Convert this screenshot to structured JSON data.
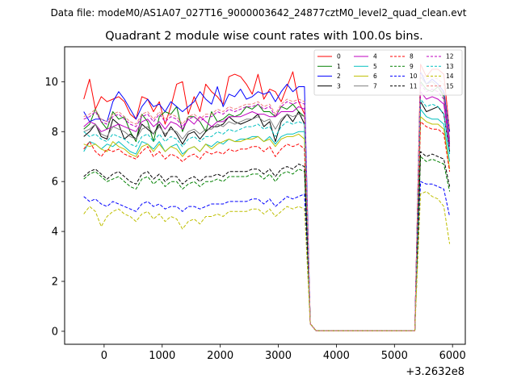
{
  "chart_data": {
    "type": "line",
    "suptitle": "Data file: modeM0/AS1A07_027T16_9000003642_24877cztM0_level2_quad_clean.evt",
    "title": "Quadrant 2 module wise count rates with 100.0s bins.",
    "xlabel": "",
    "ylabel": "",
    "x_offset_label": "+3.2632e8",
    "xlim": [
      -680,
      6220
    ],
    "ylim": [
      -0.52,
      11.4
    ],
    "xticks": [
      0,
      1000,
      2000,
      3000,
      4000,
      5000,
      6000
    ],
    "xtick_labels": [
      "0",
      "1000",
      "2000",
      "3000",
      "4000",
      "5000",
      "6000"
    ],
    "yticks": [
      0,
      2,
      4,
      6,
      8,
      10
    ],
    "ytick_labels": [
      "0",
      "2",
      "4",
      "6",
      "8",
      "10"
    ],
    "grid": false,
    "legend_position": "top-right",
    "x": [
      -350,
      -250,
      -150,
      -50,
      50,
      150,
      250,
      350,
      450,
      550,
      650,
      750,
      850,
      950,
      1050,
      1150,
      1250,
      1350,
      1450,
      1550,
      1650,
      1750,
      1850,
      1950,
      2050,
      2150,
      2250,
      2350,
      2450,
      2550,
      2650,
      2750,
      2850,
      2950,
      3050,
      3150,
      3250,
      3350,
      3450,
      3550,
      3650,
      3750,
      3850,
      3950,
      4050,
      4150,
      4250,
      4350,
      4450,
      4550,
      4650,
      4750,
      4850,
      4950,
      5050,
      5150,
      5250,
      5350,
      5450,
      5550,
      5650,
      5750,
      5850,
      5950
    ],
    "series": [
      {
        "name": "0",
        "color": "#ff0000",
        "dash": "solid",
        "values": [
          9.3,
          10.1,
          8.9,
          9.4,
          9.2,
          9.3,
          9.4,
          9.2,
          8.7,
          8.5,
          9.4,
          9.3,
          8.8,
          9.2,
          8.3,
          9.0,
          9.9,
          10.0,
          8.7,
          9.4,
          8.8,
          9.9,
          9.6,
          9.4,
          9.1,
          10.2,
          10.3,
          10.2,
          9.9,
          9.5,
          10.3,
          9.3,
          9.7,
          9.6,
          9.2,
          9.8,
          10.4,
          9.2,
          8.7,
          0.3,
          0.02,
          0.02,
          0.02,
          0.02,
          0.02,
          0.02,
          0.02,
          0.02,
          0.02,
          0.02,
          0.02,
          0.02,
          0.02,
          0.02,
          0.02,
          0.02,
          0.02,
          0.02,
          10.7,
          10.2,
          10.5,
          10.5,
          10.3,
          8.0
        ]
      },
      {
        "name": "1",
        "color": "#008000",
        "dash": "solid",
        "values": [
          8.1,
          8.3,
          8.9,
          8.4,
          8.1,
          8.8,
          8.5,
          8.6,
          8.0,
          7.6,
          8.7,
          8.4,
          7.6,
          8.6,
          8.8,
          8.7,
          9.0,
          8.0,
          8.6,
          8.6,
          8.4,
          8.0,
          8.8,
          8.4,
          8.5,
          8.7,
          8.6,
          8.7,
          9.0,
          8.9,
          9.1,
          8.8,
          8.8,
          8.6,
          9.0,
          8.9,
          9.1,
          8.8,
          8.6,
          0.3,
          0.02,
          0.02,
          0.02,
          0.02,
          0.02,
          0.02,
          0.02,
          0.02,
          0.02,
          0.02,
          0.02,
          0.02,
          0.02,
          0.02,
          0.02,
          0.02,
          0.02,
          0.02,
          10.0,
          9.7,
          9.6,
          9.8,
          9.4,
          7.5
        ]
      },
      {
        "name": "2",
        "color": "#0000ff",
        "dash": "solid",
        "values": [
          8.8,
          8.4,
          8.5,
          8.5,
          8.4,
          9.2,
          9.6,
          9.3,
          8.9,
          8.5,
          9.0,
          9.3,
          9.0,
          9.1,
          8.8,
          9.2,
          9.0,
          8.8,
          9.0,
          9.2,
          9.6,
          9.3,
          9.1,
          9.8,
          9.0,
          9.5,
          9.4,
          9.7,
          9.3,
          9.4,
          9.6,
          9.5,
          9.6,
          9.2,
          9.6,
          9.9,
          9.6,
          9.8,
          9.8,
          0.3,
          0.02,
          0.02,
          0.02,
          0.02,
          0.02,
          0.02,
          0.02,
          0.02,
          0.02,
          0.02,
          0.02,
          0.02,
          0.02,
          0.02,
          0.02,
          0.02,
          0.02,
          0.02,
          10.4,
          9.9,
          10.1,
          9.9,
          9.6,
          8.0
        ]
      },
      {
        "name": "3",
        "color": "#000000",
        "dash": "solid",
        "values": [
          7.8,
          8.0,
          8.3,
          7.8,
          7.7,
          8.5,
          8.3,
          7.7,
          7.9,
          7.7,
          8.3,
          8.1,
          7.9,
          8.3,
          7.8,
          8.2,
          7.9,
          7.5,
          7.9,
          8.0,
          7.7,
          8.0,
          8.2,
          8.2,
          8.3,
          8.6,
          8.4,
          8.3,
          8.4,
          8.5,
          8.7,
          8.2,
          8.4,
          7.6,
          8.4,
          8.7,
          8.4,
          8.8,
          8.3,
          0.3,
          0.02,
          0.02,
          0.02,
          0.02,
          0.02,
          0.02,
          0.02,
          0.02,
          0.02,
          0.02,
          0.02,
          0.02,
          0.02,
          0.02,
          0.02,
          0.02,
          0.02,
          0.02,
          9.2,
          8.8,
          8.9,
          9.0,
          8.7,
          7.2
        ]
      },
      {
        "name": "4",
        "color": "#bf00bf",
        "dash": "solid",
        "values": [
          8.2,
          8.4,
          8.3,
          8.0,
          8.1,
          8.2,
          8.3,
          8.2,
          8.1,
          8.0,
          8.4,
          8.5,
          8.2,
          8.4,
          8.1,
          8.4,
          8.3,
          8.1,
          8.5,
          8.3,
          8.6,
          8.4,
          8.2,
          8.4,
          8.4,
          8.6,
          8.6,
          8.6,
          8.7,
          8.8,
          8.7,
          8.7,
          8.6,
          8.6,
          8.8,
          8.8,
          8.8,
          9.0,
          8.9,
          0.3,
          0.02,
          0.02,
          0.02,
          0.02,
          0.02,
          0.02,
          0.02,
          0.02,
          0.02,
          0.02,
          0.02,
          0.02,
          0.02,
          0.02,
          0.02,
          0.02,
          0.02,
          0.02,
          9.6,
          9.3,
          9.4,
          9.3,
          9.1,
          7.4
        ]
      },
      {
        "name": "5",
        "color": "#00bfbf",
        "dash": "solid",
        "values": [
          7.2,
          7.6,
          7.5,
          7.3,
          7.5,
          7.4,
          7.6,
          7.4,
          7.2,
          7.1,
          7.6,
          7.5,
          7.3,
          7.6,
          7.2,
          7.4,
          7.5,
          7.1,
          7.3,
          7.4,
          7.2,
          7.5,
          7.4,
          7.6,
          7.5,
          7.7,
          7.6,
          7.7,
          7.7,
          7.8,
          7.8,
          7.6,
          7.8,
          7.5,
          7.8,
          7.9,
          7.9,
          8.0,
          8.0,
          0.3,
          0.02,
          0.02,
          0.02,
          0.02,
          0.02,
          0.02,
          0.02,
          0.02,
          0.02,
          0.02,
          0.02,
          0.02,
          0.02,
          0.02,
          0.02,
          0.02,
          0.02,
          0.02,
          8.9,
          8.6,
          8.5,
          8.5,
          8.3,
          6.8
        ]
      },
      {
        "name": "6",
        "color": "#bfbf00",
        "dash": "solid",
        "values": [
          7.5,
          7.4,
          7.5,
          7.3,
          7.2,
          7.6,
          7.4,
          7.3,
          7.1,
          7.0,
          7.4,
          7.5,
          7.2,
          7.5,
          7.2,
          7.4,
          7.3,
          7.0,
          7.3,
          7.4,
          7.2,
          7.5,
          7.3,
          7.5,
          7.6,
          7.7,
          7.6,
          7.6,
          7.7,
          7.7,
          7.8,
          7.6,
          7.7,
          7.4,
          7.7,
          7.8,
          7.8,
          7.9,
          7.7,
          0.3,
          0.02,
          0.02,
          0.02,
          0.02,
          0.02,
          0.02,
          0.02,
          0.02,
          0.02,
          0.02,
          0.02,
          0.02,
          0.02,
          0.02,
          0.02,
          0.02,
          0.02,
          0.02,
          8.6,
          8.4,
          8.3,
          8.3,
          8.1,
          6.5
        ]
      },
      {
        "name": "7",
        "color": "#808080",
        "dash": "solid",
        "values": [
          8.0,
          8.1,
          8.3,
          7.9,
          7.8,
          8.2,
          8.1,
          8.0,
          7.8,
          7.7,
          8.1,
          8.2,
          7.9,
          8.2,
          7.9,
          8.1,
          8.0,
          7.7,
          8.0,
          8.1,
          7.9,
          8.1,
          8.1,
          8.3,
          8.2,
          8.4,
          8.3,
          8.4,
          8.5,
          8.5,
          8.6,
          8.4,
          8.5,
          8.1,
          8.5,
          8.7,
          8.6,
          8.7,
          8.6,
          0.3,
          0.02,
          0.02,
          0.02,
          0.02,
          0.02,
          0.02,
          0.02,
          0.02,
          0.02,
          0.02,
          0.02,
          0.02,
          0.02,
          0.02,
          0.02,
          0.02,
          0.02,
          0.02,
          10.2,
          9.9,
          10.0,
          9.8,
          9.5,
          7.7
        ]
      },
      {
        "name": "8",
        "color": "#ff0000",
        "dash": "dashed",
        "values": [
          7.3,
          7.6,
          7.2,
          7.0,
          7.3,
          7.2,
          7.3,
          7.1,
          7.0,
          6.9,
          7.2,
          7.4,
          7.0,
          7.2,
          6.9,
          7.1,
          7.0,
          6.8,
          7.0,
          7.1,
          6.9,
          7.2,
          7.1,
          7.2,
          7.1,
          7.3,
          7.2,
          7.3,
          7.3,
          7.4,
          7.4,
          7.2,
          7.4,
          7.0,
          7.3,
          7.5,
          7.4,
          7.5,
          7.3,
          0.3,
          0.02,
          0.02,
          0.02,
          0.02,
          0.02,
          0.02,
          0.02,
          0.02,
          0.02,
          0.02,
          0.02,
          0.02,
          0.02,
          0.02,
          0.02,
          0.02,
          0.02,
          0.02,
          8.4,
          8.2,
          8.1,
          8.1,
          7.9,
          6.4
        ]
      },
      {
        "name": "9",
        "color": "#008000",
        "dash": "dashed",
        "values": [
          6.1,
          6.3,
          6.4,
          6.2,
          6.0,
          6.1,
          6.2,
          6.0,
          5.8,
          5.7,
          6.1,
          6.2,
          5.9,
          6.1,
          5.8,
          6.0,
          6.0,
          5.7,
          5.9,
          6.0,
          5.8,
          6.0,
          6.0,
          6.1,
          6.0,
          6.2,
          6.2,
          6.2,
          6.2,
          6.3,
          6.3,
          6.1,
          6.3,
          6.0,
          6.3,
          6.4,
          6.3,
          6.5,
          6.4,
          0.3,
          0.02,
          0.02,
          0.02,
          0.02,
          0.02,
          0.02,
          0.02,
          0.02,
          0.02,
          0.02,
          0.02,
          0.02,
          0.02,
          0.02,
          0.02,
          0.02,
          0.02,
          0.02,
          7.0,
          6.8,
          6.9,
          6.8,
          6.7,
          5.6
        ]
      },
      {
        "name": "10",
        "color": "#0000ff",
        "dash": "dashed",
        "values": [
          5.4,
          5.2,
          5.3,
          5.1,
          5.0,
          5.2,
          5.1,
          5.0,
          4.9,
          4.8,
          5.1,
          5.2,
          5.0,
          5.1,
          4.9,
          5.0,
          5.0,
          4.8,
          5.0,
          5.0,
          4.9,
          5.0,
          5.1,
          5.1,
          5.1,
          5.2,
          5.2,
          5.2,
          5.2,
          5.3,
          5.3,
          5.1,
          5.3,
          5.0,
          5.2,
          5.4,
          5.3,
          5.4,
          5.5,
          0.3,
          0.02,
          0.02,
          0.02,
          0.02,
          0.02,
          0.02,
          0.02,
          0.02,
          0.02,
          0.02,
          0.02,
          0.02,
          0.02,
          0.02,
          0.02,
          0.02,
          0.02,
          0.02,
          6.0,
          5.9,
          5.9,
          5.8,
          5.7,
          4.6
        ]
      },
      {
        "name": "11",
        "color": "#000000",
        "dash": "dashed",
        "values": [
          6.2,
          6.4,
          6.5,
          6.3,
          6.1,
          6.3,
          6.4,
          6.2,
          6.0,
          5.9,
          6.3,
          6.4,
          6.1,
          6.3,
          6.0,
          6.2,
          6.2,
          5.9,
          6.1,
          6.2,
          6.0,
          6.2,
          6.2,
          6.3,
          6.2,
          6.4,
          6.4,
          6.4,
          6.4,
          6.5,
          6.5,
          6.3,
          6.5,
          6.2,
          6.5,
          6.6,
          6.5,
          6.7,
          6.6,
          0.3,
          0.02,
          0.02,
          0.02,
          0.02,
          0.02,
          0.02,
          0.02,
          0.02,
          0.02,
          0.02,
          0.02,
          0.02,
          0.02,
          0.02,
          0.02,
          0.02,
          0.02,
          0.02,
          7.2,
          7.0,
          7.1,
          7.0,
          6.9,
          5.8
        ]
      },
      {
        "name": "12",
        "color": "#bf00bf",
        "dash": "dashed",
        "values": [
          8.5,
          8.6,
          8.8,
          8.4,
          8.3,
          8.6,
          8.7,
          8.5,
          8.3,
          8.2,
          8.6,
          8.7,
          8.4,
          8.7,
          8.4,
          8.6,
          8.5,
          8.2,
          8.5,
          8.6,
          8.4,
          8.6,
          8.6,
          8.8,
          8.7,
          8.9,
          8.8,
          8.9,
          9.0,
          9.0,
          9.1,
          8.9,
          9.0,
          8.6,
          9.0,
          9.2,
          9.1,
          9.2,
          9.1,
          0.3,
          0.02,
          0.02,
          0.02,
          0.02,
          0.02,
          0.02,
          0.02,
          0.02,
          0.02,
          0.02,
          0.02,
          0.02,
          0.02,
          0.02,
          0.02,
          0.02,
          0.02,
          0.02,
          9.9,
          9.6,
          9.7,
          9.6,
          9.3,
          7.6
        ]
      },
      {
        "name": "13",
        "color": "#00bfbf",
        "dash": "dashed",
        "values": [
          8.0,
          7.8,
          7.9,
          7.7,
          7.6,
          7.9,
          7.8,
          7.7,
          7.5,
          7.4,
          7.8,
          7.9,
          7.6,
          7.9,
          7.6,
          7.8,
          7.7,
          7.4,
          7.7,
          7.8,
          7.6,
          7.8,
          7.8,
          8.0,
          7.9,
          8.1,
          8.0,
          8.1,
          8.2,
          8.2,
          8.3,
          8.1,
          8.2,
          7.8,
          8.2,
          8.4,
          8.3,
          8.4,
          8.3,
          0.3,
          0.02,
          0.02,
          0.02,
          0.02,
          0.02,
          0.02,
          0.02,
          0.02,
          0.02,
          0.02,
          0.02,
          0.02,
          0.02,
          0.02,
          0.02,
          0.02,
          0.02,
          0.02,
          9.3,
          9.0,
          9.1,
          9.0,
          8.7,
          7.1
        ]
      },
      {
        "name": "14",
        "color": "#bfbf00",
        "dash": "dashed",
        "values": [
          4.7,
          5.0,
          4.8,
          4.2,
          4.6,
          4.8,
          4.9,
          4.7,
          4.6,
          4.4,
          4.7,
          4.8,
          4.5,
          4.7,
          4.4,
          4.6,
          4.5,
          4.1,
          4.4,
          4.5,
          4.3,
          4.6,
          4.6,
          4.7,
          4.6,
          4.8,
          4.8,
          4.8,
          4.8,
          4.9,
          4.9,
          4.7,
          4.9,
          4.6,
          4.8,
          5.0,
          4.9,
          5.0,
          4.9,
          0.3,
          0.02,
          0.02,
          0.02,
          0.02,
          0.02,
          0.02,
          0.02,
          0.02,
          0.02,
          0.02,
          0.02,
          0.02,
          0.02,
          0.02,
          0.02,
          0.02,
          0.02,
          0.02,
          5.5,
          5.6,
          5.4,
          5.3,
          5.0,
          3.5
        ]
      },
      {
        "name": "15",
        "color": "#f08080",
        "dash": "dashed",
        "values": [
          8.6,
          8.7,
          8.9,
          8.5,
          8.4,
          8.7,
          8.8,
          8.6,
          8.4,
          8.3,
          8.7,
          8.8,
          8.5,
          8.8,
          8.5,
          8.7,
          8.6,
          8.3,
          8.6,
          8.7,
          8.5,
          8.7,
          8.7,
          8.9,
          8.8,
          9.0,
          8.9,
          9.0,
          9.1,
          9.1,
          9.2,
          9.0,
          9.1,
          8.7,
          9.1,
          9.3,
          9.2,
          9.3,
          9.2,
          0.3,
          0.02,
          0.02,
          0.02,
          0.02,
          0.02,
          0.02,
          0.02,
          0.02,
          0.02,
          0.02,
          0.02,
          0.02,
          0.02,
          0.02,
          0.02,
          0.02,
          0.02,
          0.02,
          10.4,
          10.1,
          10.2,
          10.1,
          9.9,
          8.1
        ]
      }
    ]
  }
}
